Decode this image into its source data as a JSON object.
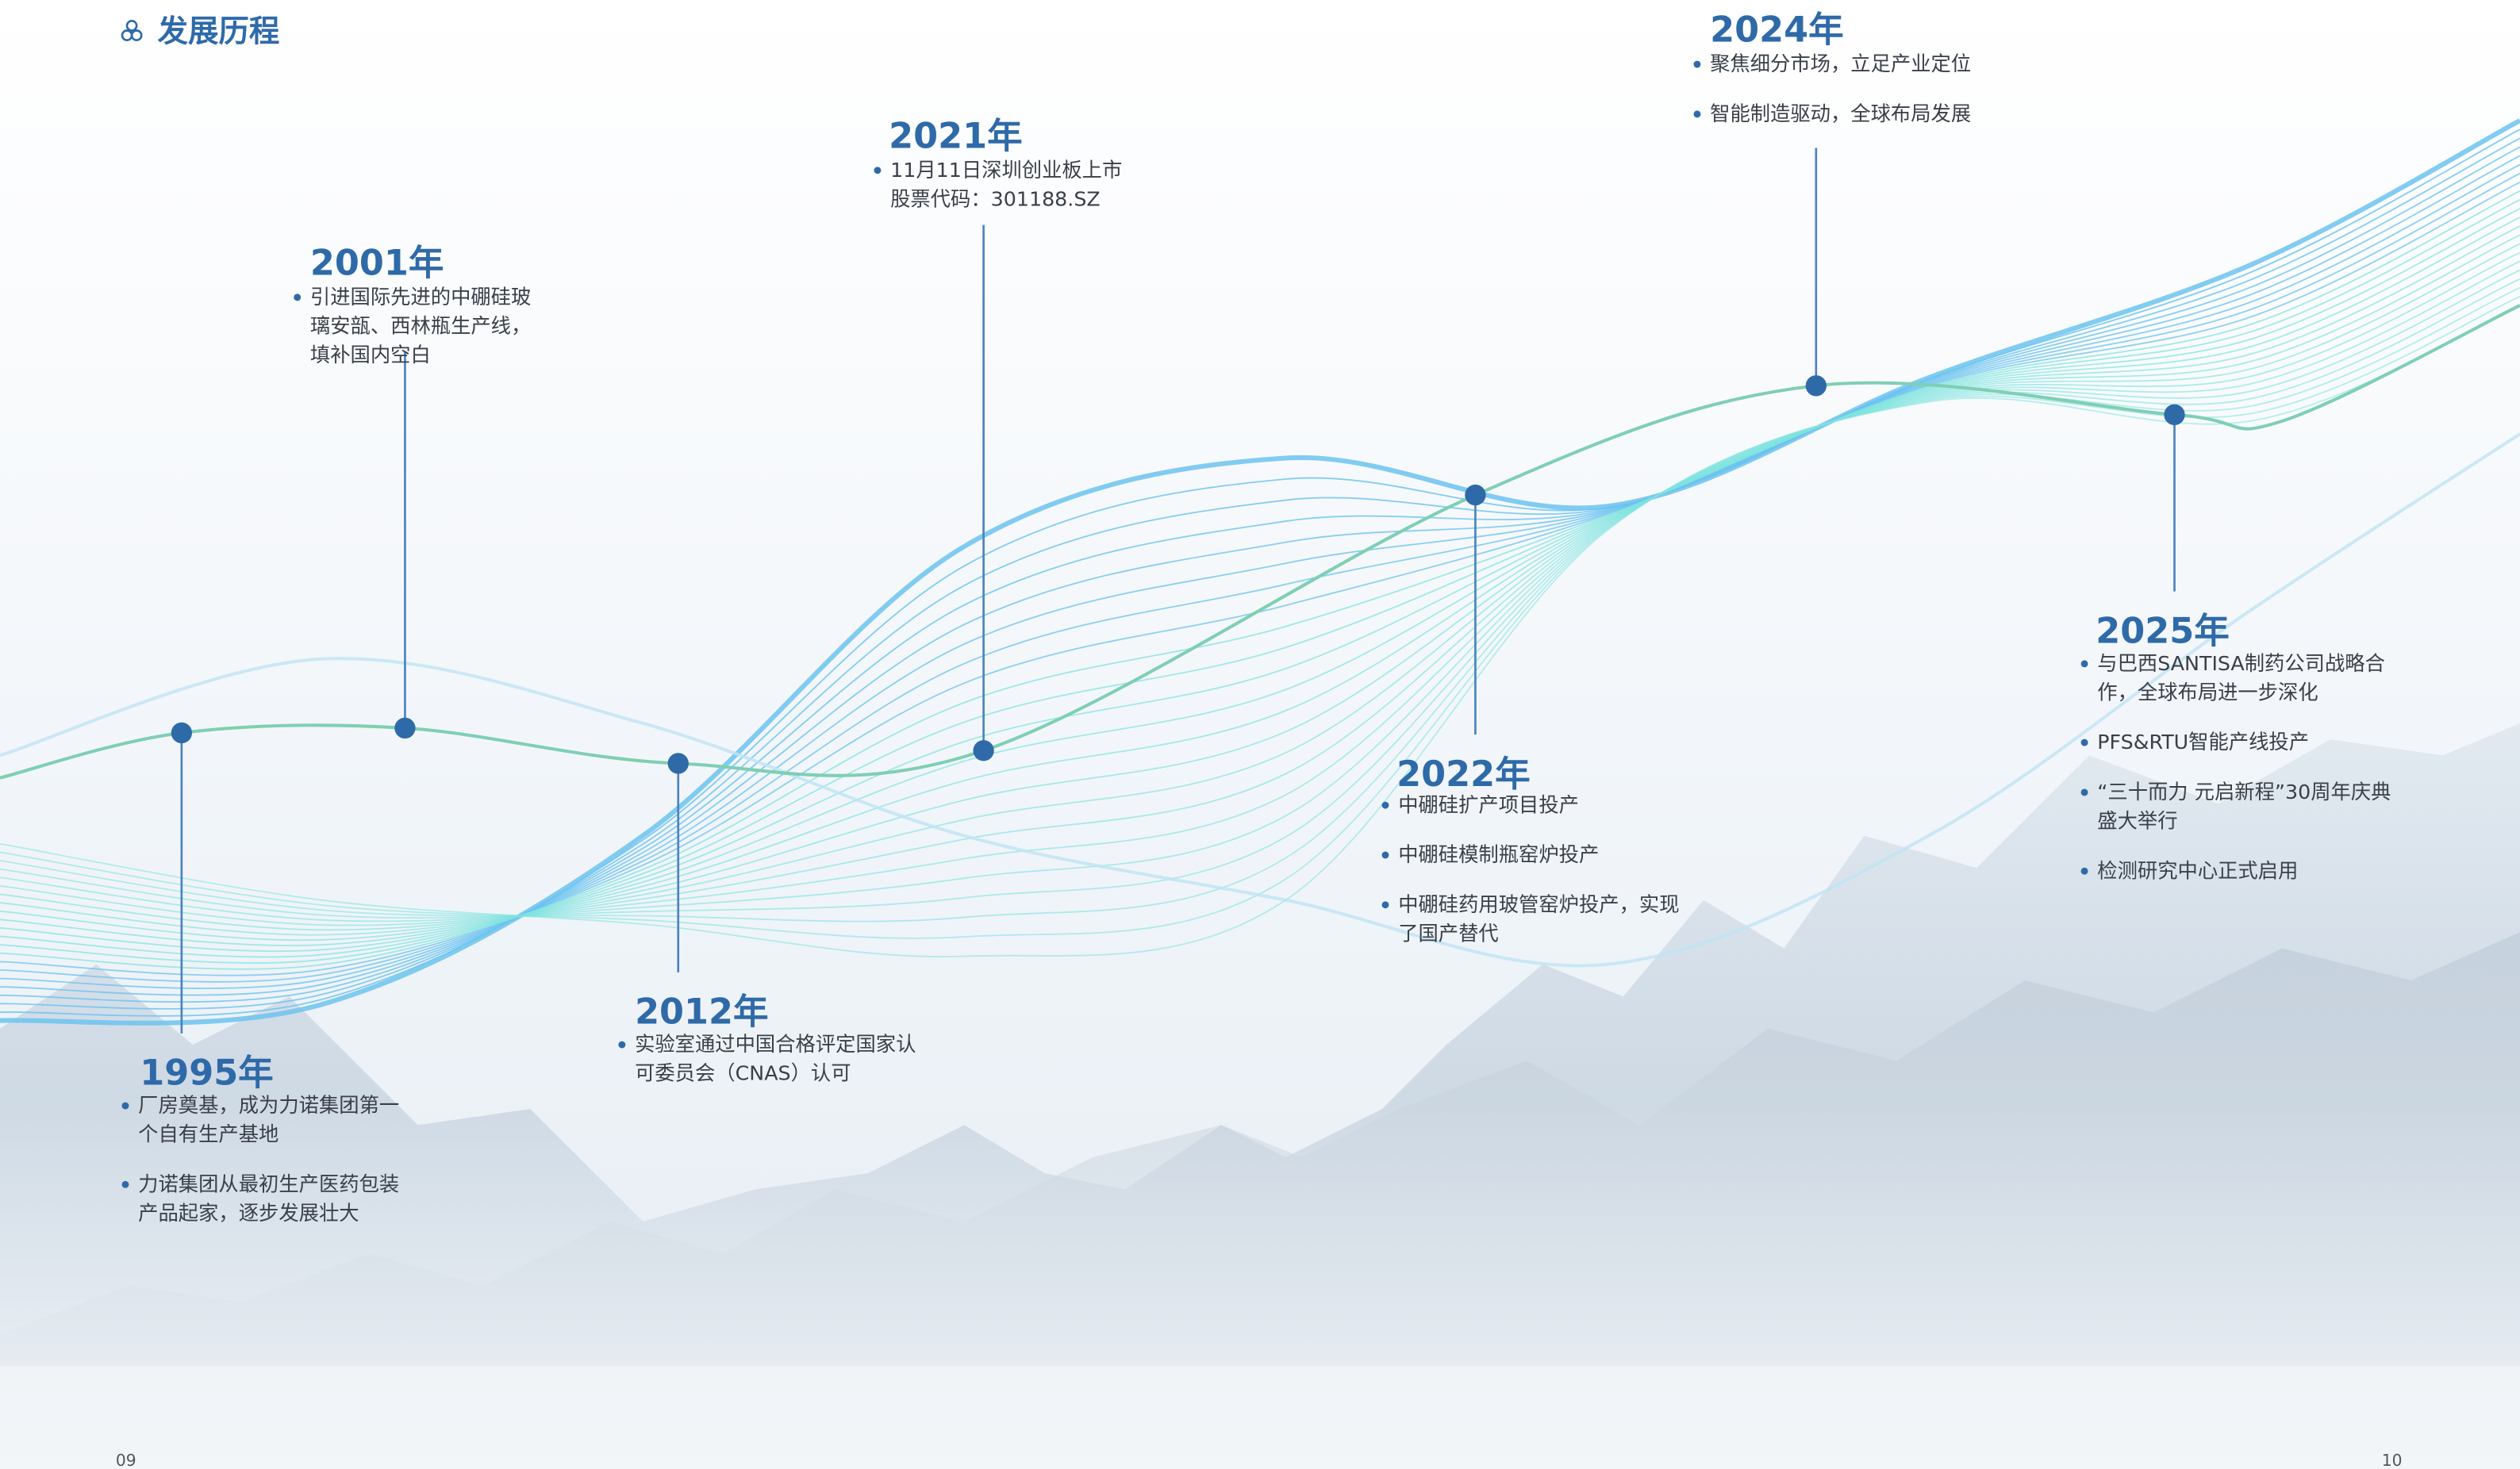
{
  "header": {
    "title": "发展历程"
  },
  "milestones": [
    {
      "year": "1995年",
      "items": [
        [
          "厂房奠基，成为力诺集团第一",
          "个自有生产基地"
        ],
        [
          "力诺集团从最初生产医药包装",
          "产品起家，逐步发展壮大"
        ]
      ]
    },
    {
      "year": "2001年",
      "items": [
        [
          "引进国际先进的中硼硅玻",
          "璃安瓿、西林瓶生产线，",
          "填补国内空白"
        ]
      ]
    },
    {
      "year": "2012年",
      "items": [
        [
          "实验室通过中国合格评定国家认",
          "可委员会（CNAS）认可"
        ]
      ]
    },
    {
      "year": "2021年",
      "items": [
        [
          "11月11日深圳创业板上市",
          "股票代码：301188.SZ"
        ]
      ]
    },
    {
      "year": "2022年",
      "items": [
        [
          "中硼硅扩产项目投产"
        ],
        [
          "中硼硅模制瓶窑炉投产"
        ],
        [
          "中硼硅药用玻管窑炉投产，实现",
          "了国产替代"
        ]
      ]
    },
    {
      "year": "2024年",
      "items": [
        [
          "聚焦细分市场，立足产业定位"
        ],
        [
          "智能制造驱动，全球布局发展"
        ]
      ]
    },
    {
      "year": "2025年",
      "items": [
        [
          "与巴西SANTISA制药公司战略合",
          "作，全球布局进一步深化"
        ],
        [
          "PFS&RTU智能产线投产"
        ],
        [
          "“三十而力 元启新程”30周年庆典",
          "盛大举行"
        ],
        [
          "检测研究中心正式启用"
        ]
      ]
    }
  ],
  "footer": {
    "left_page": "09",
    "right_page": "10"
  }
}
